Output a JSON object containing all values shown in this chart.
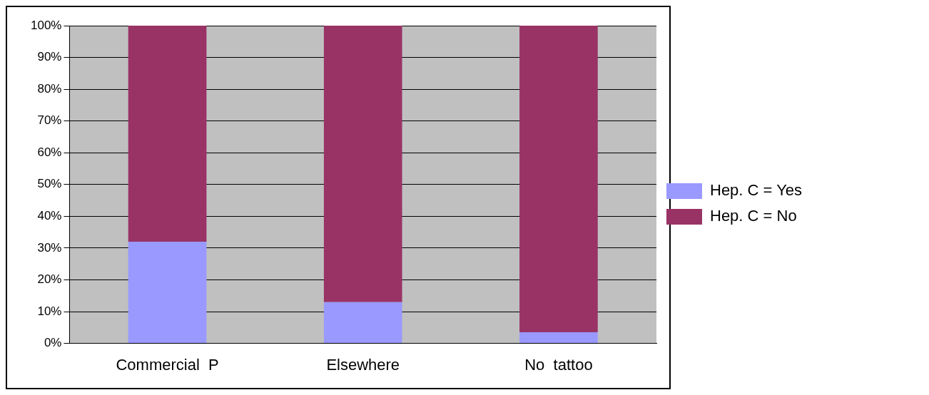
{
  "chart_data": {
    "type": "bar",
    "stacked": true,
    "categories": [
      "Commercial  P",
      "Elsewhere",
      "No  tattoo"
    ],
    "series": [
      {
        "name": "Hep. C = Yes",
        "color": "#9999ff",
        "values": [
          32,
          13,
          3.5
        ]
      },
      {
        "name": "Hep. C = No",
        "color": "#993366",
        "values": [
          68,
          87,
          96.5
        ]
      }
    ],
    "ylim": [
      0,
      100
    ],
    "yticks": [
      {
        "value": 0,
        "label": "0%"
      },
      {
        "value": 10,
        "label": "10%"
      },
      {
        "value": 20,
        "label": "20%"
      },
      {
        "value": 30,
        "label": "30%"
      },
      {
        "value": 40,
        "label": "40%"
      },
      {
        "value": 50,
        "label": "50%"
      },
      {
        "value": 60,
        "label": "60%"
      },
      {
        "value": 70,
        "label": "70%"
      },
      {
        "value": 80,
        "label": "80%"
      },
      {
        "value": 90,
        "label": "90%"
      },
      {
        "value": 100,
        "label": "100%"
      }
    ],
    "grid": "y",
    "legend": "right"
  }
}
